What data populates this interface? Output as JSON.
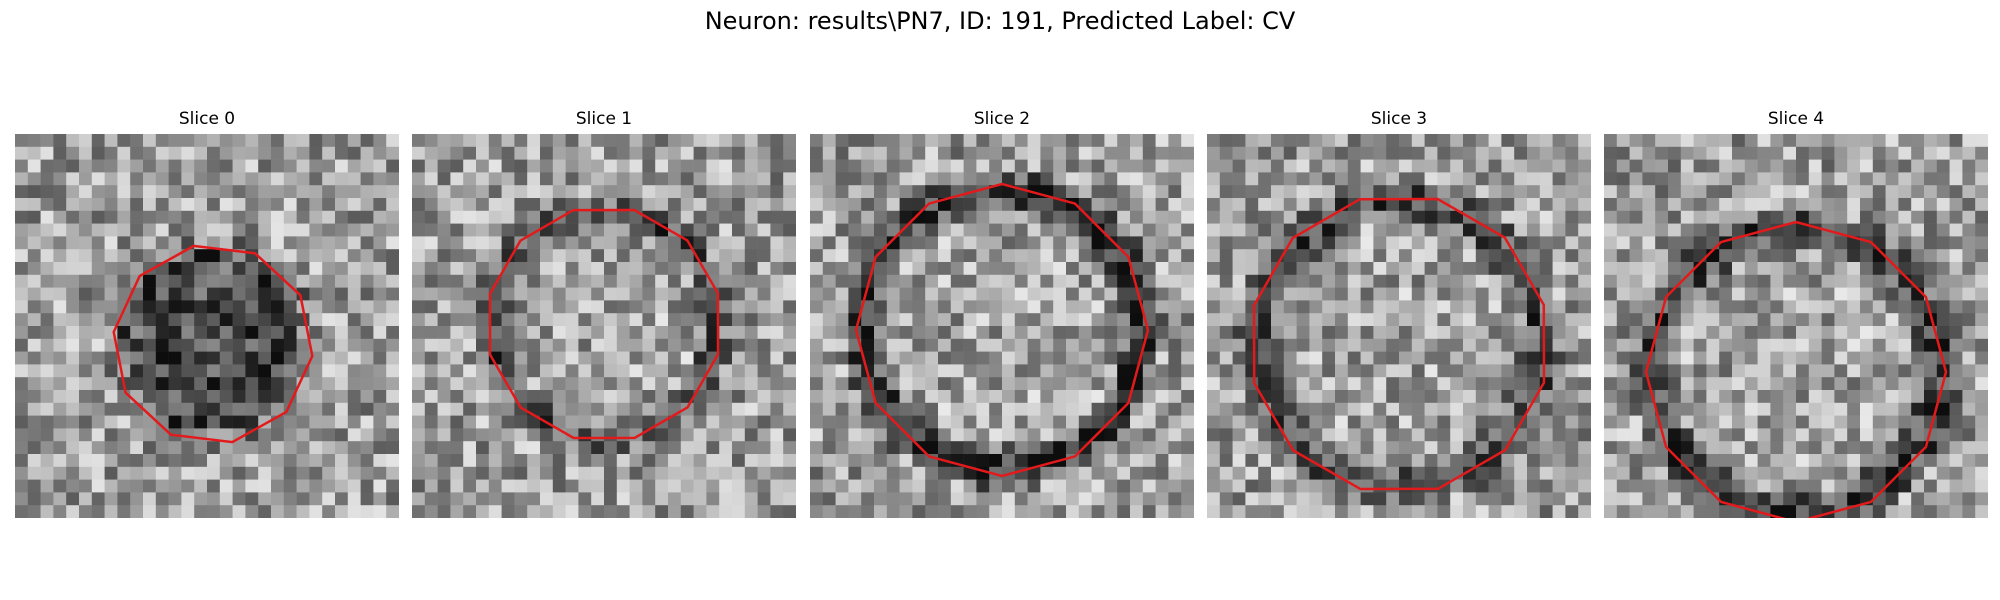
{
  "figure": {
    "title": "Neuron: results\\PN7, ID: 191, Predicted Label: CV",
    "grid_size": 30,
    "contour_color": "#e31a1c",
    "slices": [
      {
        "title": "Slice 0",
        "seed": 11,
        "dark_blob": true,
        "ring_dark": 0.25
      },
      {
        "title": "Slice 1",
        "seed": 23,
        "dark_blob": false,
        "ring_dark": 0.35
      },
      {
        "title": "Slice 2",
        "seed": 37,
        "dark_blob": false,
        "ring_dark": 0.5
      },
      {
        "title": "Slice 3",
        "seed": 53,
        "dark_blob": false,
        "ring_dark": 0.4
      },
      {
        "title": "Slice 4",
        "seed": 71,
        "dark_blob": false,
        "ring_dark": 0.45
      }
    ]
  }
}
